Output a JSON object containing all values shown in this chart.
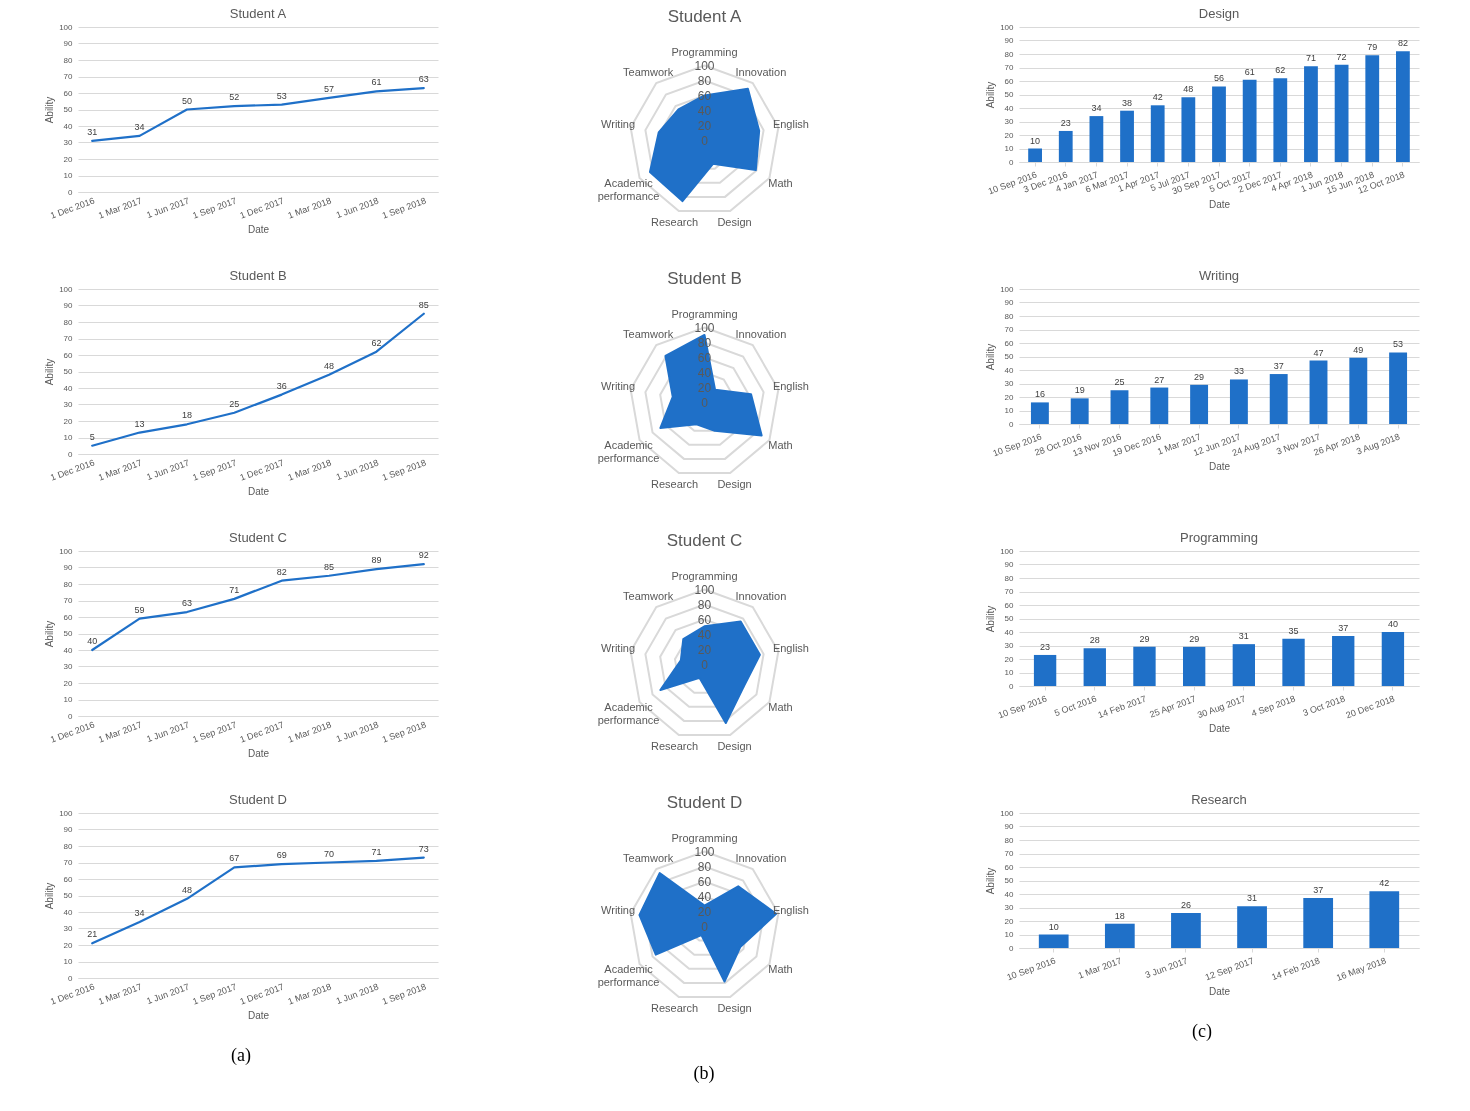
{
  "chart_data": [
    {
      "type": "line",
      "title": "Student A",
      "xlabel": "Date",
      "ylabel": "Ability",
      "categories": [
        "1 Dec 2016",
        "1 Mar 2017",
        "1 Jun 2017",
        "1 Sep 2017",
        "1 Dec 2017",
        "1 Mar 2018",
        "1 Jun 2018",
        "1 Sep 2018"
      ],
      "values": [
        31,
        34,
        50,
        52,
        53,
        57,
        61,
        63
      ],
      "color": "#1f70c8",
      "ylim": [
        0,
        100
      ],
      "yticks": [
        0,
        10,
        20,
        30,
        40,
        50,
        60,
        70,
        80,
        90,
        100
      ],
      "grid": "y",
      "data_labels": true
    },
    {
      "type": "radar",
      "title": "Student A",
      "categories": [
        "Programming",
        "Innovation",
        "English",
        "Math",
        "Design",
        "Research",
        "Academic performance",
        "Writing",
        "Teamwork"
      ],
      "series": [
        {
          "color": "#1f70c8",
          "values": [
            60,
            90,
            74,
            79,
            33,
            86,
            84,
            62,
            54
          ]
        }
      ],
      "ylim": [
        0,
        100
      ],
      "yticks": [
        0,
        20,
        40,
        60,
        80,
        100
      ],
      "grid": true
    },
    {
      "type": "bar",
      "title": "Design",
      "xlabel": "Date",
      "ylabel": "Ability",
      "categories": [
        "10 Sep 2016",
        "3 Dec 2016",
        "4 Jan 2017",
        "6 Mar 2017",
        "1 Apr 2017",
        "5 Jul 2017",
        "30 Sep 2017",
        "5 Oct 2017",
        "2 Dec 2017",
        "4 Apr 2018",
        "1 Jun 2018",
        "15 Jun 2018",
        "12 Oct 2018"
      ],
      "values": [
        10,
        23,
        34,
        38,
        42,
        48,
        56,
        61,
        62,
        71,
        72,
        79,
        82
      ],
      "color": "#1f70c8",
      "ylim": [
        0,
        100
      ],
      "yticks": [
        0,
        10,
        20,
        30,
        40,
        50,
        60,
        70,
        80,
        90,
        100
      ],
      "grid": "y",
      "data_labels": true
    },
    {
      "type": "line",
      "title": "Student B",
      "xlabel": "Date",
      "ylabel": "Ability",
      "categories": [
        "1 Dec 2016",
        "1 Mar 2017",
        "1 Jun 2017",
        "1 Sep 2017",
        "1 Dec 2017",
        "1 Mar 2018",
        "1 Jun 2018",
        "1 Sep 2018"
      ],
      "values": [
        5,
        13,
        18,
        25,
        36,
        48,
        62,
        85
      ],
      "color": "#1f70c8",
      "ylim": [
        0,
        100
      ],
      "yticks": [
        0,
        10,
        20,
        30,
        40,
        50,
        60,
        70,
        80,
        90,
        100
      ],
      "grid": "y",
      "data_labels": true
    },
    {
      "type": "radar",
      "title": "Student B",
      "categories": [
        "Programming",
        "Innovation",
        "English",
        "Math",
        "Design",
        "Research",
        "Academic performance",
        "Writing",
        "Teamwork"
      ],
      "series": [
        {
          "color": "#1f70c8",
          "values": [
            90,
            22,
            63,
            88,
            40,
            31,
            68,
            43,
            81
          ]
        }
      ],
      "ylim": [
        0,
        100
      ],
      "yticks": [
        0,
        20,
        40,
        60,
        80,
        100
      ],
      "grid": true
    },
    {
      "type": "bar",
      "title": "Writing",
      "xlabel": "Date",
      "ylabel": "Ability",
      "categories": [
        "10 Sep 2016",
        "28 Oct 2016",
        "13 Nov 2016",
        "19 Dec 2016",
        "1 Mar 2017",
        "12 Jun 2017",
        "24 Aug 2017",
        "3 Nov 2017",
        "26 Apr 2018",
        "3 Aug 2018"
      ],
      "values": [
        16,
        19,
        25,
        27,
        29,
        33,
        37,
        47,
        49,
        53
      ],
      "color": "#1f70c8",
      "ylim": [
        0,
        100
      ],
      "yticks": [
        0,
        10,
        20,
        30,
        40,
        50,
        60,
        70,
        80,
        90,
        100
      ],
      "grid": "y",
      "data_labels": true
    },
    {
      "type": "line",
      "title": "Student C",
      "xlabel": "Date",
      "ylabel": "Ability",
      "categories": [
        "1 Dec 2016",
        "1 Mar 2017",
        "1 Jun 2017",
        "1 Sep 2017",
        "1 Dec 2017",
        "1 Mar 2018",
        "1 Jun 2018",
        "1 Sep 2018"
      ],
      "values": [
        40,
        59,
        63,
        71,
        82,
        85,
        89,
        92
      ],
      "color": "#1f70c8",
      "ylim": [
        0,
        100
      ],
      "yticks": [
        0,
        10,
        20,
        30,
        40,
        50,
        60,
        70,
        80,
        90,
        100
      ],
      "grid": "y",
      "data_labels": true
    },
    {
      "type": "radar",
      "title": "Student C",
      "categories": [
        "Programming",
        "Innovation",
        "English",
        "Math",
        "Design",
        "Research",
        "Academic performance",
        "Writing",
        "Teamwork"
      ],
      "series": [
        {
          "color": "#1f70c8",
          "values": [
            51,
            75,
            75,
            60,
            83,
            19,
            68,
            32,
            44
          ]
        }
      ],
      "ylim": [
        0,
        100
      ],
      "yticks": [
        0,
        20,
        40,
        60,
        80,
        100
      ],
      "grid": true
    },
    {
      "type": "bar",
      "title": "Programming",
      "xlabel": "Date",
      "ylabel": "Ability",
      "categories": [
        "10 Sep 2016",
        "5 Oct 2016",
        "14 Feb 2017",
        "25 Apr 2017",
        "30 Aug 2017",
        "4 Sep 2018",
        "3 Oct 2018",
        "20 Dec 2018"
      ],
      "values": [
        23,
        28,
        29,
        29,
        31,
        35,
        37,
        40
      ],
      "color": "#1f70c8",
      "ylim": [
        0,
        100
      ],
      "yticks": [
        0,
        10,
        20,
        30,
        40,
        50,
        60,
        70,
        80,
        90,
        100
      ],
      "grid": "y",
      "data_labels": true
    },
    {
      "type": "line",
      "title": "Student D",
      "xlabel": "Date",
      "ylabel": "Ability",
      "categories": [
        "1 Dec 2016",
        "1 Mar 2017",
        "1 Jun 2017",
        "1 Sep 2017",
        "1 Dec 2017",
        "1 Mar 2018",
        "1 Jun 2018",
        "1 Sep 2018"
      ],
      "values": [
        21,
        34,
        48,
        67,
        69,
        70,
        71,
        73
      ],
      "color": "#1f70c8",
      "ylim": [
        0,
        100
      ],
      "yticks": [
        0,
        10,
        20,
        30,
        40,
        50,
        60,
        70,
        80,
        90,
        100
      ],
      "grid": "y",
      "data_labels": true,
      "annotations": [
        "(a)"
      ]
    },
    {
      "type": "radar",
      "title": "Student D",
      "categories": [
        "Programming",
        "Innovation",
        "English",
        "Math",
        "Design",
        "Research",
        "Academic performance",
        "Writing",
        "Teamwork"
      ],
      "series": [
        {
          "color": "#1f70c8",
          "values": [
            28,
            70,
            97,
            55,
            78,
            12,
            75,
            88,
            93
          ]
        }
      ],
      "ylim": [
        0,
        100
      ],
      "yticks": [
        0,
        20,
        40,
        60,
        80,
        100
      ],
      "grid": true,
      "annotations": [
        "(b)"
      ]
    },
    {
      "type": "bar",
      "title": "Research",
      "xlabel": "Date",
      "ylabel": "Ability",
      "categories": [
        "10 Sep 2016",
        "1 Mar 2017",
        "3 Jun 2017",
        "12 Sep 2017",
        "14 Feb 2018",
        "16 May 2018"
      ],
      "values": [
        10,
        18,
        26,
        31,
        37,
        42
      ],
      "color": "#1f70c8",
      "ylim": [
        0,
        100
      ],
      "yticks": [
        0,
        10,
        20,
        30,
        40,
        50,
        60,
        70,
        80,
        90,
        100
      ],
      "grid": "y",
      "data_labels": true,
      "annotations": [
        "(c)"
      ]
    }
  ]
}
